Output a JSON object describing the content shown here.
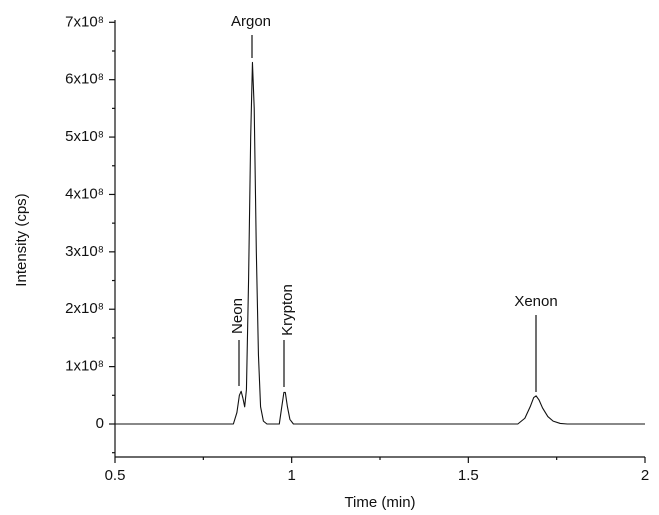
{
  "chart_data": {
    "type": "line",
    "x_label": "Time (min)",
    "y_label": "Intensity (cps)",
    "xlim": [
      0.5,
      2.0
    ],
    "xticks": [
      0.5,
      1.0,
      1.5,
      2.0
    ],
    "xticks_minor": [
      0.75,
      1.25,
      1.75
    ],
    "ylim": [
      -57500000,
      704000000
    ],
    "yticks": [
      0,
      {
        "value": 100000000,
        "label": "1x10⁸"
      },
      {
        "value": 200000000,
        "label": "2x10⁸"
      },
      {
        "value": 300000000,
        "label": "3x10⁸"
      },
      {
        "value": 400000000,
        "label": "4x10⁸"
      },
      {
        "value": 500000000,
        "label": "5x10⁸"
      },
      {
        "value": 600000000,
        "label": "6x10⁸"
      },
      {
        "value": 700000000,
        "label": "7x10⁸"
      }
    ],
    "yticks_minor": [
      -50000000,
      50000000,
      150000000,
      250000000,
      350000000,
      450000000,
      550000000,
      650000000
    ],
    "color": "#111111",
    "x": [
      0.5,
      0.8,
      0.835,
      0.845,
      0.852,
      0.857,
      0.862,
      0.867,
      0.872,
      0.878,
      0.884,
      0.889,
      0.894,
      0.9,
      0.906,
      0.912,
      0.92,
      0.93,
      0.965,
      0.972,
      0.978,
      0.982,
      0.988,
      0.995,
      1.005,
      1.64,
      1.66,
      1.675,
      1.685,
      1.692,
      1.7,
      1.71,
      1.725,
      1.74,
      1.76,
      1.78,
      2.0
    ],
    "values": [
      0,
      0,
      0,
      20000000,
      50000000,
      57000000,
      45000000,
      30000000,
      60000000,
      250000000,
      500000000,
      630000000,
      550000000,
      300000000,
      120000000,
      30000000,
      5000000,
      0,
      0,
      30000000,
      55000000,
      55000000,
      30000000,
      8000000,
      0,
      0,
      10000000,
      30000000,
      46000000,
      49000000,
      42000000,
      28000000,
      13000000,
      5000000,
      1000000,
      0,
      0
    ],
    "annotations": [
      "Argon",
      "Neon",
      "Krypton",
      "Xenon"
    ]
  }
}
